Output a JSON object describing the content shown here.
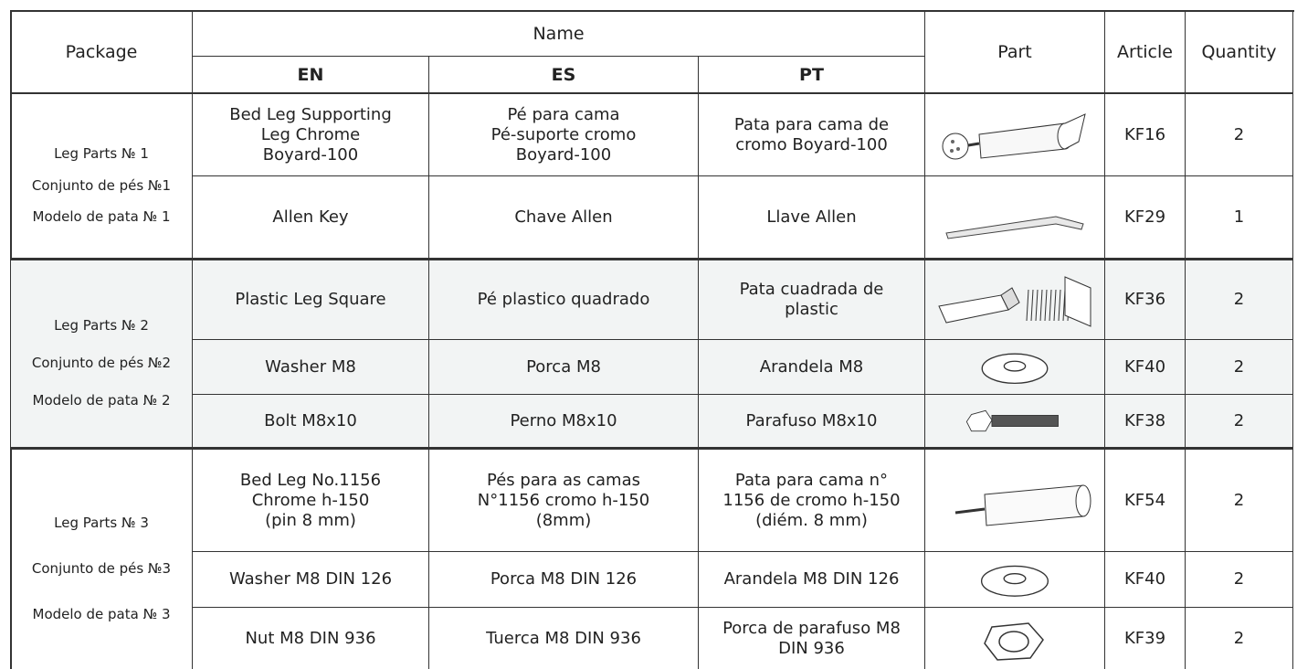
{
  "header": {
    "package": "Package",
    "name": "Name",
    "en": "EN",
    "es": "ES",
    "pt": "PT",
    "part": "Part",
    "article": "Article",
    "quantity": "Quantity"
  },
  "groups": [
    {
      "package": [
        "Leg Parts № 1",
        "Conjunto de pés №1",
        "Modelo de pata № 1"
      ],
      "rows": [
        {
          "en": "Bed Leg Supporting\nLeg Chrome\nBoyard-100",
          "es": "Pé para cama\nPé-suporte cromo\nBoyard-100",
          "pt": "Pata para cama de\ncromo Boyard-100",
          "article": "KF16",
          "quantity": 2
        },
        {
          "en": "Allen Key",
          "es": "Chave Allen",
          "pt": "Llave Allen",
          "article": "KF29",
          "quantity": 1
        }
      ]
    },
    {
      "package": [
        "Leg Parts № 2",
        "Conjunto de pés №2",
        "Modelo de pata № 2"
      ],
      "rows": [
        {
          "en": "Plastic Leg Square",
          "es": "Pé plastico quadrado",
          "pt": "Pata cuadrada de\nplastic",
          "article": "KF36",
          "quantity": 2
        },
        {
          "en": "Washer M8",
          "es": "Porca M8",
          "pt": "Arandela M8",
          "article": "KF40",
          "quantity": 2
        },
        {
          "en": "Bolt M8x10",
          "es": "Perno M8x10",
          "pt": "Parafuso M8x10",
          "article": "KF38",
          "quantity": 2
        }
      ]
    },
    {
      "package": [
        "Leg Parts № 3",
        "Conjunto de pés №3",
        "Modelo de pata № 3"
      ],
      "rows": [
        {
          "en": "Bed Leg No.1156\nChrome h-150\n(pin 8 mm)",
          "es": "Pés para as camas\nN°1156 cromo h-150\n(8mm)",
          "pt": "Pata para cama n°\n1156 de cromo h-150\n(diém. 8 mm)",
          "article": "KF54",
          "quantity": 2
        },
        {
          "en": "Washer M8 DIN 126",
          "es": "Porca M8 DIN 126",
          "pt": "Arandela M8 DIN 126",
          "article": "KF40",
          "quantity": 2
        },
        {
          "en": "Nut M8 DIN 936",
          "es": "Tuerca M8 DIN 936",
          "pt": "Porca de parafuso M8\nDIN 936",
          "article": "KF39",
          "quantity": 2
        }
      ]
    }
  ]
}
